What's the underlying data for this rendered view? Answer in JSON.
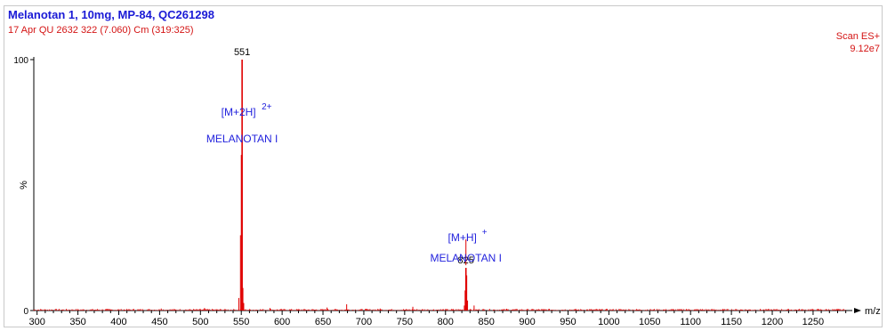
{
  "header": {
    "title": "Melanotan 1, 10mg, MP-84, QC261298",
    "subtitle": "17 Apr QU 2632 322 (7.060) Cm (319:325)",
    "scan_mode": "Scan ES+",
    "intensity": "9.12e7"
  },
  "colors": {
    "spectrum": "#e00000",
    "annotation": "#2222dd",
    "axis": "#000000"
  },
  "chart_data": {
    "type": "line",
    "title": "Melanotan 1, 10mg, MP-84, QC261298",
    "xlabel": "m/z",
    "ylabel": "%",
    "xlim": [
      296,
      1298
    ],
    "ylim": [
      0,
      100
    ],
    "xticks": [
      300,
      350,
      400,
      450,
      500,
      550,
      600,
      650,
      700,
      750,
      800,
      850,
      900,
      950,
      1000,
      1050,
      1100,
      1150,
      1200,
      1250
    ],
    "yticks": [
      "0",
      "100"
    ],
    "peaks": [
      {
        "mz": 551,
        "intensity": 100,
        "label": "551",
        "ion": "[M+2H]",
        "charge": "2+",
        "compound": "MELANOTAN I"
      },
      {
        "mz": 825,
        "intensity": 17,
        "label": "825",
        "ion": "[M+H]",
        "charge": "+",
        "compound": "MELANOTAN I"
      }
    ],
    "minor_peaks": [
      {
        "mz": 547,
        "intensity": 5
      },
      {
        "mz": 549,
        "intensity": 30
      },
      {
        "mz": 550,
        "intensity": 62
      },
      {
        "mz": 552,
        "intensity": 9
      },
      {
        "mz": 553,
        "intensity": 3
      },
      {
        "mz": 823,
        "intensity": 2
      },
      {
        "mz": 824,
        "intensity": 8
      },
      {
        "mz": 826,
        "intensity": 14
      },
      {
        "mz": 827,
        "intensity": 4
      },
      {
        "mz": 835,
        "intensity": 2
      },
      {
        "mz": 679,
        "intensity": 2.5
      },
      {
        "mz": 760,
        "intensity": 1.5
      },
      {
        "mz": 655,
        "intensity": 1.2
      },
      {
        "mz": 505,
        "intensity": 1.0
      },
      {
        "mz": 452,
        "intensity": 0.8
      },
      {
        "mz": 585,
        "intensity": 1.0
      },
      {
        "mz": 720,
        "intensity": 0.8
      },
      {
        "mz": 875,
        "intensity": 0.7
      },
      {
        "mz": 1095,
        "intensity": 0.6
      }
    ]
  }
}
